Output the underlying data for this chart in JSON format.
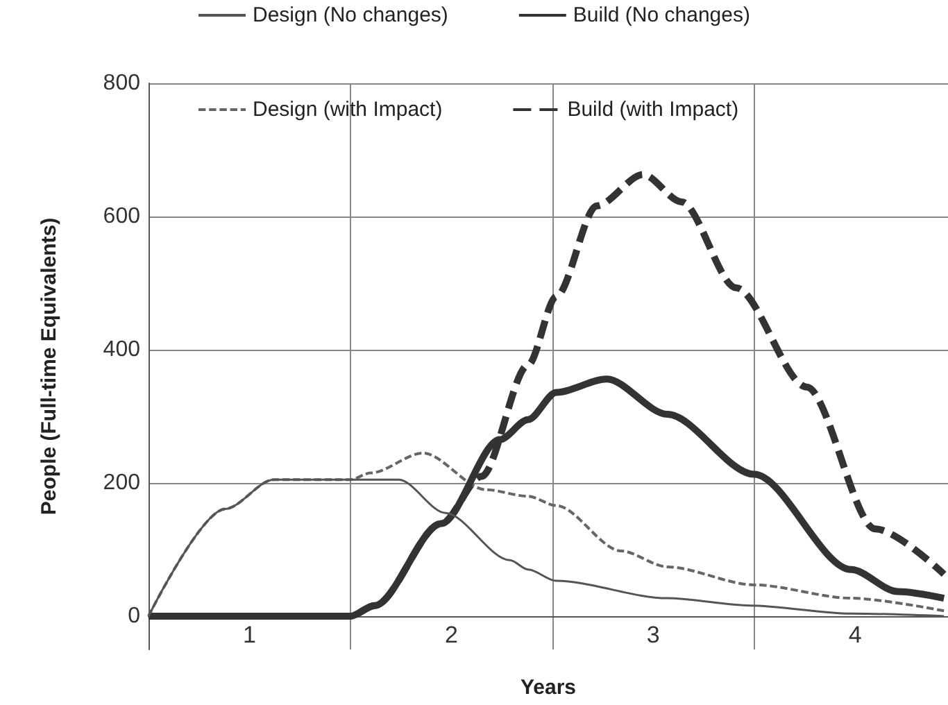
{
  "chart_data": {
    "type": "line",
    "xlabel": "Years",
    "ylabel": "People (Full-time Equivalents)",
    "xlim": [
      0,
      3.96
    ],
    "xticks": [
      {
        "value": 0,
        "label": null
      },
      {
        "value": 0.5,
        "label": "1"
      },
      {
        "value": 1,
        "label": null
      },
      {
        "value": 1.5,
        "label": "2"
      },
      {
        "value": 2,
        "label": null
      },
      {
        "value": 2.5,
        "label": "3"
      },
      {
        "value": 3,
        "label": null
      },
      {
        "value": 3.5,
        "label": "4"
      }
    ],
    "ylim": [
      -50,
      800
    ],
    "yticks": [
      0,
      200,
      400,
      600,
      800
    ],
    "grid": true,
    "legend": "top",
    "marker": "none",
    "series": [
      {
        "name": "Design (No changes)",
        "color": "#555555",
        "line_style": "solid",
        "x": [
          0,
          0.38,
          0.62,
          1.24,
          1.47,
          1.79,
          1.88,
          2.02,
          2.57,
          2.98,
          3.48,
          3.94
        ],
        "values": [
          0,
          161,
          205,
          205,
          155,
          84,
          70,
          53,
          27,
          16,
          4,
          0
        ]
      },
      {
        "name": "Build (No changes)",
        "color": "#333333",
        "line_style": "solid",
        "x": [
          0,
          1.0,
          1.12,
          1.45,
          1.74,
          1.88,
          2.02,
          2.27,
          2.57,
          3.0,
          3.48,
          3.71,
          3.94
        ],
        "values": [
          0,
          0,
          16,
          139,
          265,
          295,
          336,
          356,
          303,
          213,
          70,
          37,
          27
        ]
      },
      {
        "name": "Design (with Impact)",
        "color": "#666666",
        "line_style": "dashed",
        "x": [
          0,
          0.38,
          0.62,
          1.0,
          1.1,
          1.36,
          1.67,
          1.88,
          2.02,
          2.34,
          2.57,
          3.0,
          3.48,
          3.94
        ],
        "values": [
          0,
          161,
          205,
          205,
          215,
          245,
          190,
          180,
          166,
          98,
          74,
          47,
          27,
          8
        ]
      },
      {
        "name": "Build (with Impact)",
        "color": "#333333",
        "line_style": "dashed",
        "x": [
          0,
          1.0,
          1.12,
          1.45,
          1.65,
          1.88,
          2.02,
          2.22,
          2.45,
          2.64,
          2.91,
          3.26,
          3.6,
          3.94
        ],
        "values": [
          0,
          0,
          16,
          139,
          210,
          377,
          480,
          616,
          663,
          622,
          493,
          344,
          131,
          63
        ]
      }
    ]
  }
}
